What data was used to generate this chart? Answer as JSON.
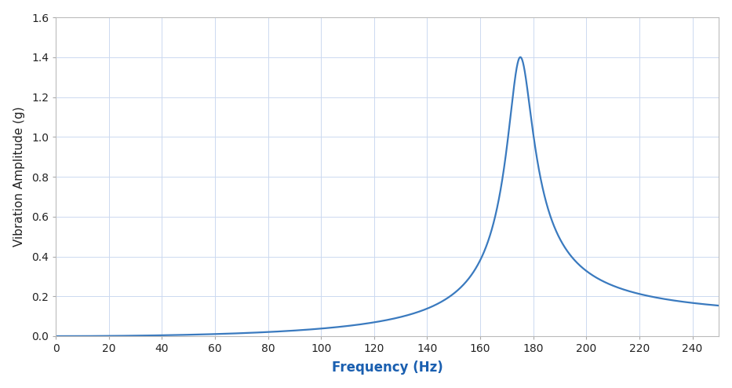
{
  "resonance_freq": 175,
  "damping_ratio": 0.028,
  "peak_amplitude": 1.4,
  "x_min": 0,
  "x_max": 250,
  "x_tick_step": 20,
  "y_min": 0,
  "y_max": 1.6,
  "y_tick_step": 0.2,
  "line_color": "#3a7abf",
  "line_width": 1.6,
  "background_color": "#ffffff",
  "grid_color": "#ccd9f0",
  "xlabel": "Frequency (Hz)",
  "ylabel": "Vibration Amplitude (g)",
  "xlabel_color": "#1a5fb0",
  "ylabel_color": "#222222",
  "tick_label_color": "#222222",
  "num_points": 8000
}
